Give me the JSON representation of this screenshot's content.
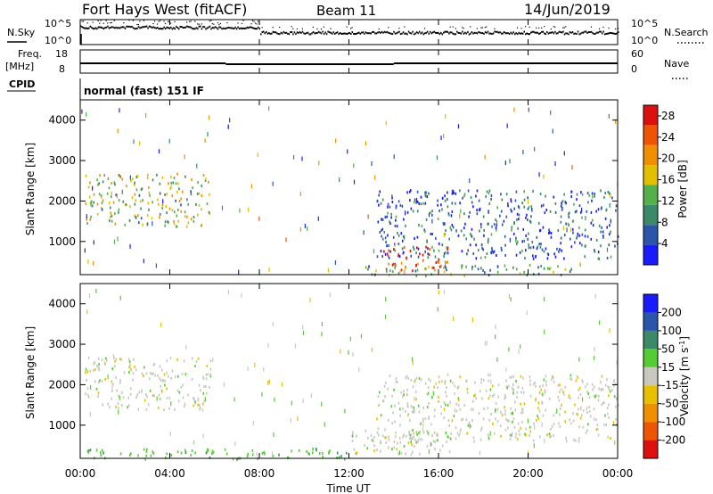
{
  "header": {
    "station": "Fort Hays West (fitACF)",
    "beam": "Beam 11",
    "date": "14/Jun/2019"
  },
  "top_panels": {
    "nsky_label": "N.Sky",
    "nsky_ticks": [
      "10^5",
      "10^0"
    ],
    "nsearch_label": "N.Search",
    "nsearch_ticks": [
      "10^5",
      "10^0"
    ],
    "freq_label_line1": "Freq.",
    "freq_label_line2": "[MHz]",
    "freq_ticks": [
      "18",
      "8"
    ],
    "nave_label": "Nave",
    "nave_ticks": [
      "60",
      "0"
    ],
    "cpid_label": "CPID",
    "cpid_text": "normal (fast) 151 IF"
  },
  "colors": {
    "power_scale": [
      "#1a1aff",
      "#2a55a8",
      "#3a8a6a",
      "#55b04a",
      "#e0c000",
      "#f09000",
      "#ee5500",
      "#dd1010"
    ],
    "velocity_scale": [
      "#1a1aff",
      "#2a55a8",
      "#3a8a6a",
      "#55cc33",
      "#c8c8c0",
      "#e8c000",
      "#f09000",
      "#ee5500",
      "#dd1010"
    ]
  },
  "chart_data": [
    {
      "type": "heatmap",
      "title": "Power",
      "xlabel": "Time UT",
      "ylabel": "Slant Range [km]",
      "x_ticks": [
        "00:00",
        "04:00",
        "08:00",
        "12:00",
        "16:00",
        "20:00",
        "00:00"
      ],
      "x_range_hours": [
        0,
        24
      ],
      "y_ticks": [
        1000,
        2000,
        3000,
        4000
      ],
      "y_range_km": [
        180,
        4500
      ],
      "colorbar_label": "Power [dB]",
      "colorbar_ticks": [
        4,
        8,
        12,
        16,
        20,
        24,
        28
      ],
      "colorbar_range": [
        0,
        30
      ],
      "echo_regions": [
        {
          "hours": [
            0.2,
            5.8
          ],
          "range_km": [
            1400,
            2700
          ],
          "power_db": 14
        },
        {
          "hours": [
            13.5,
            16.5
          ],
          "range_km": [
            300,
            900
          ],
          "power_db": 26
        },
        {
          "hours": [
            12.5,
            22.5
          ],
          "range_km": [
            180,
            450
          ],
          "power_db": 10
        },
        {
          "hours": [
            13.2,
            24.0
          ],
          "range_km": [
            600,
            2300
          ],
          "power_db": 6
        }
      ]
    },
    {
      "type": "heatmap",
      "title": "Velocity",
      "xlabel": "Time UT",
      "ylabel": "Slant Range [km]",
      "x_ticks": [
        "00:00",
        "04:00",
        "08:00",
        "12:00",
        "16:00",
        "20:00",
        "00:00"
      ],
      "x_range_hours": [
        0,
        24
      ],
      "y_ticks": [
        1000,
        2000,
        3000,
        4000
      ],
      "y_range_km": [
        180,
        4500
      ],
      "colorbar_label": "Velocity [m s^-1]",
      "colorbar_ticks": [
        200,
        100,
        50,
        15,
        -15,
        -50,
        -100,
        -200
      ],
      "echo_regions": [
        {
          "hours": [
            0.2,
            5.8
          ],
          "range_km": [
            1400,
            2700
          ],
          "velocity_ms": 0
        },
        {
          "hours": [
            0.2,
            12.0
          ],
          "range_km": [
            180,
            450
          ],
          "velocity_ms": 40
        },
        {
          "hours": [
            12.0,
            16.5
          ],
          "range_km": [
            300,
            900
          ],
          "velocity_ms": 0
        },
        {
          "hours": [
            13.2,
            24.0
          ],
          "range_km": [
            600,
            2300
          ],
          "velocity_ms": 0
        }
      ]
    }
  ]
}
